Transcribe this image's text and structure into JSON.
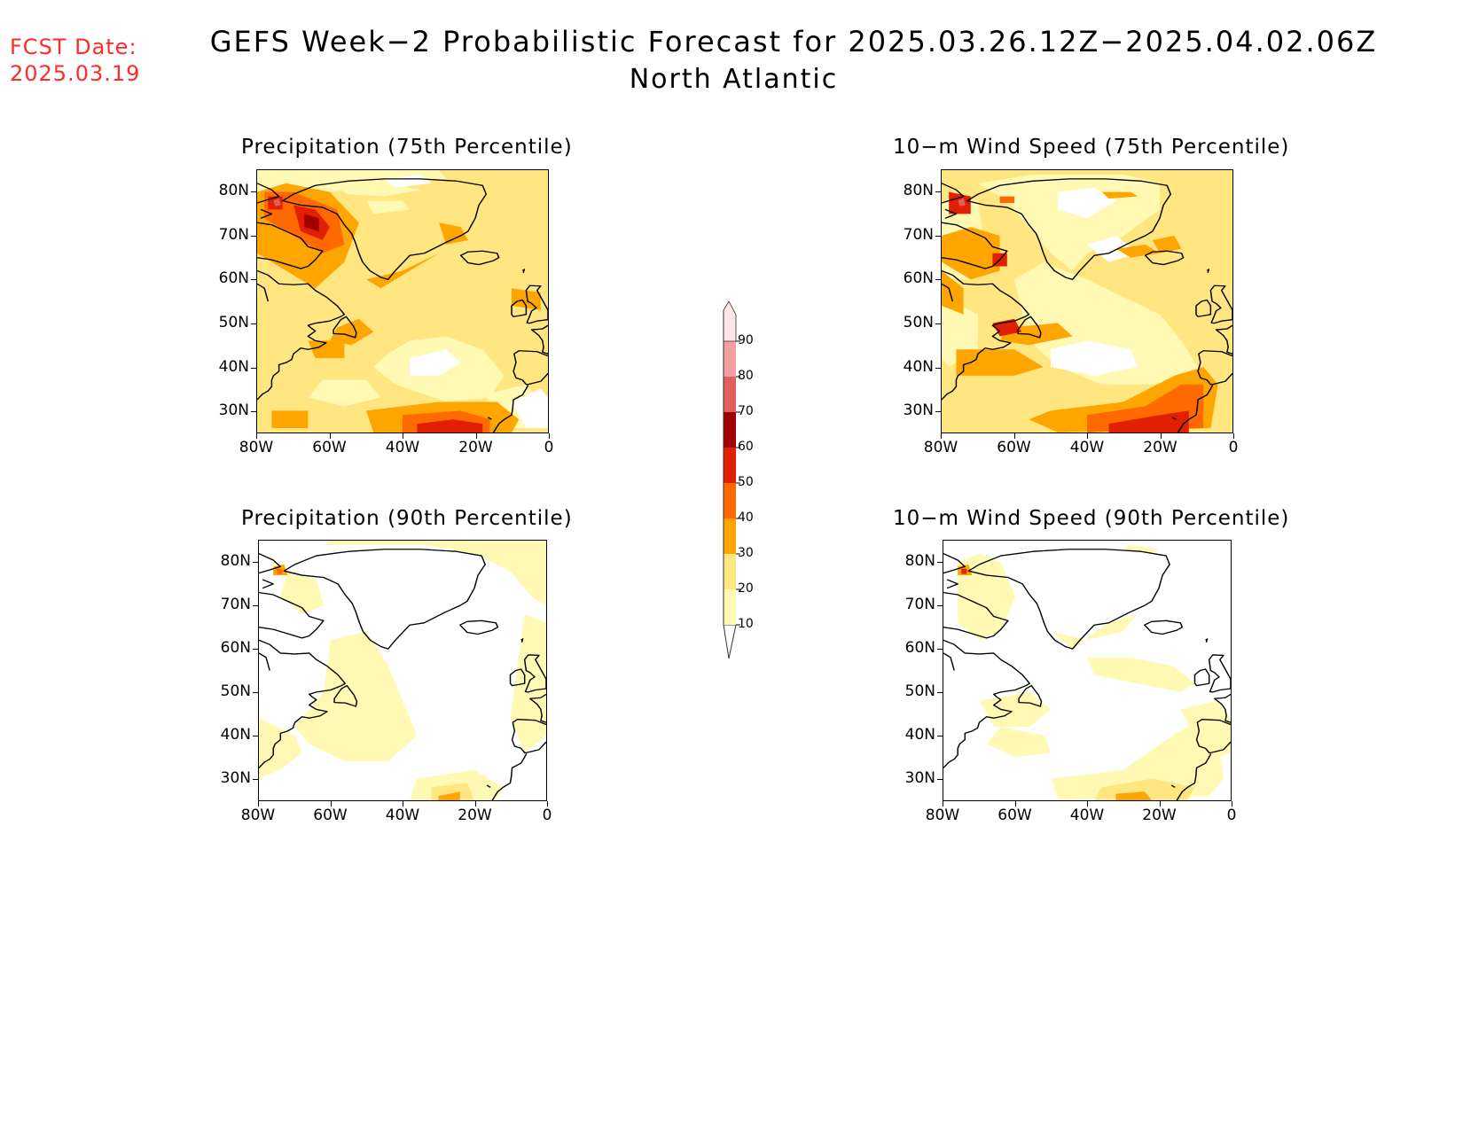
{
  "fcst_date": {
    "line1": "FCST Date:",
    "line2": "2025.03.19"
  },
  "title": {
    "line1": "GEFS Week−2 Probabilistic Forecast for 2025.03.26.12Z−2025.04.02.06Z",
    "line2": "North Atlantic"
  },
  "panels": [
    {
      "title": "Precipitation (75th Percentile)"
    },
    {
      "title": "10−m Wind Speed (75th Percentile)"
    },
    {
      "title": "Precipitation (90th Percentile)"
    },
    {
      "title": "10−m Wind Speed (90th Percentile)"
    }
  ],
  "axes": {
    "lat_ticks": [
      "80N",
      "70N",
      "60N",
      "50N",
      "40N",
      "30N"
    ],
    "lon_ticks": [
      "80W",
      "60W",
      "40W",
      "20W",
      "0"
    ]
  },
  "colorbar": {
    "levels": [
      "10",
      "20",
      "30",
      "40",
      "50",
      "60",
      "70",
      "80",
      "90"
    ],
    "colors": [
      "#fff9b3",
      "#ffe680",
      "#ffa500",
      "#ff6a00",
      "#e02000",
      "#a00000",
      "#e06060",
      "#f4a0a0",
      "#ffe6e6"
    ]
  },
  "chart_data": {
    "type": "heatmap",
    "lon_range": [
      -80,
      0
    ],
    "lat_range": [
      25,
      85
    ]
  }
}
